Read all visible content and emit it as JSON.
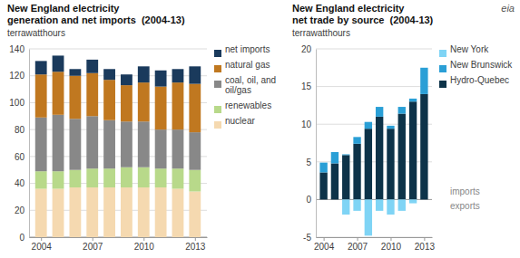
{
  "chart_data": [
    {
      "type": "bar",
      "stacked": true,
      "grid": true,
      "legend": "right",
      "title": "New England electricity",
      "subtitle": "generation and net imports  (2004-13)",
      "ylabel": "terrawatthours",
      "x": [
        2004,
        2005,
        2006,
        2007,
        2008,
        2009,
        2010,
        2011,
        2012,
        2013
      ],
      "xlim": [
        2003.3,
        2013.7
      ],
      "xticks": [
        2004,
        2007,
        2010,
        2013
      ],
      "ylim": [
        0,
        140
      ],
      "yticks": [
        0,
        20,
        40,
        60,
        80,
        100,
        120,
        140
      ],
      "series": [
        {
          "name": "nuclear",
          "color": "#f5d9b0",
          "values": [
            36,
            36,
            37,
            37,
            37,
            37,
            37,
            37,
            36,
            34
          ]
        },
        {
          "name": "renewables",
          "color": "#b8d98a",
          "values": [
            13,
            13,
            13,
            14,
            14,
            15,
            15,
            14,
            15,
            16
          ]
        },
        {
          "name": "coal, oil, and oil/gas",
          "color": "#888888",
          "values": [
            40,
            42,
            38,
            39,
            36,
            34,
            34,
            29,
            29,
            28
          ]
        },
        {
          "name": "natural gas",
          "color": "#c07820",
          "values": [
            32,
            32,
            32,
            32,
            30,
            27,
            29,
            32,
            35,
            36
          ]
        },
        {
          "name": "net imports",
          "color": "#1a3a5c",
          "values": [
            10,
            12,
            5,
            10,
            8,
            8,
            12,
            12,
            10,
            13
          ]
        }
      ]
    },
    {
      "type": "bar",
      "stacked": true,
      "grid": true,
      "legend": "right",
      "title": "New England electricity",
      "subtitle": "net trade by source  (2004-13)",
      "ylabel": "terrawatthours",
      "x": [
        2004,
        2005,
        2006,
        2007,
        2008,
        2009,
        2010,
        2011,
        2012,
        2013
      ],
      "xlim": [
        2003.3,
        2013.7
      ],
      "xticks": [
        2004,
        2007,
        2010,
        2013
      ],
      "ylim": [
        -5,
        20
      ],
      "yticks": [
        -5,
        0,
        5,
        10,
        15,
        20
      ],
      "annotations": [
        "imports",
        "exports"
      ],
      "series": [
        {
          "name": "Hydro-Quebec",
          "color": "#0d3349",
          "values": [
            3.6,
            4.8,
            5.9,
            7.4,
            9.4,
            11.0,
            9.4,
            11.4,
            13.0,
            14.0
          ]
        },
        {
          "name": "New Brunswick",
          "color": "#2a9fd6",
          "values": [
            1.3,
            1.5,
            0.1,
            0.9,
            0.9,
            1.3,
            0.4,
            0.9,
            0.4,
            3.5
          ]
        },
        {
          "name": "New York",
          "color": "#7fd4f5",
          "values": [
            0.0,
            0.0,
            -2.0,
            -1.5,
            -4.8,
            -1.5,
            -2.0,
            -1.5,
            -0.5,
            0.0
          ]
        }
      ]
    }
  ],
  "credit": "eia"
}
